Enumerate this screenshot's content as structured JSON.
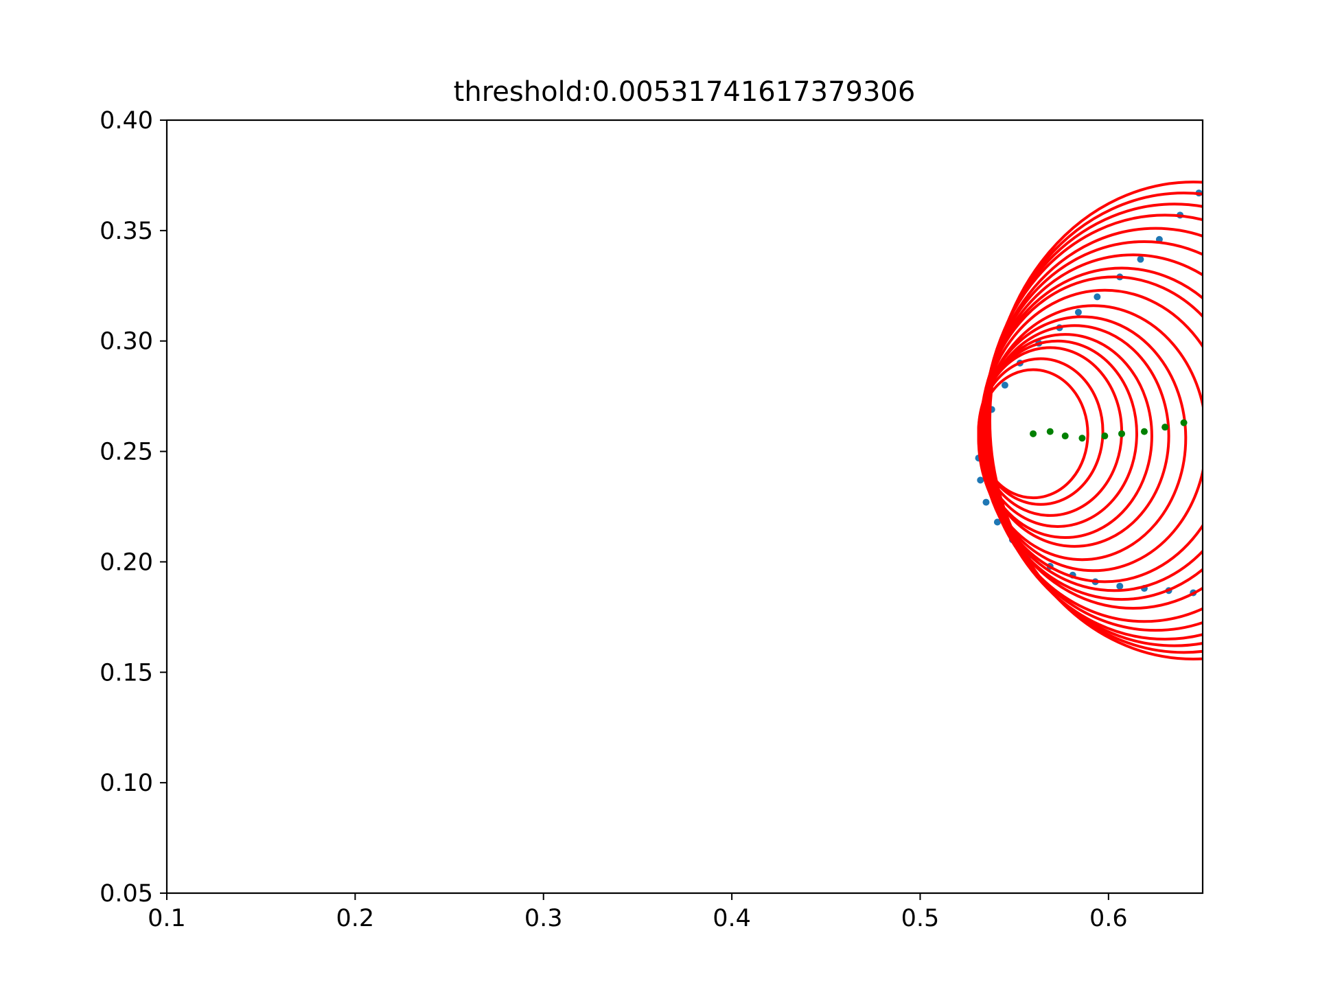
{
  "chart_data": {
    "type": "scatter",
    "title": "threshold:0.00531741617379306",
    "xlabel": "",
    "ylabel": "",
    "xlim": [
      0.1,
      0.65
    ],
    "ylim": [
      0.05,
      0.4
    ],
    "grid": false,
    "x_ticks": [
      0.1,
      0.2,
      0.3,
      0.4,
      0.5,
      0.6
    ],
    "x_tick_labels": [
      "0.1",
      "0.2",
      "0.3",
      "0.4",
      "0.5",
      "0.6"
    ],
    "y_ticks": [
      0.05,
      0.1,
      0.15,
      0.2,
      0.25,
      0.3,
      0.35,
      0.4
    ],
    "y_tick_labels": [
      "0.05",
      "0.10",
      "0.15",
      "0.20",
      "0.25",
      "0.30",
      "0.35",
      "0.40"
    ],
    "boundary_points": {
      "color": "#1f77b4",
      "x": [
        0.648,
        0.638,
        0.627,
        0.617,
        0.606,
        0.594,
        0.584,
        0.574,
        0.563,
        0.553,
        0.545,
        0.538,
        0.533,
        0.531,
        0.532,
        0.535,
        0.541,
        0.549,
        0.558,
        0.569,
        0.581,
        0.593,
        0.606,
        0.619,
        0.632,
        0.645
      ],
      "y": [
        0.367,
        0.357,
        0.346,
        0.337,
        0.329,
        0.32,
        0.313,
        0.306,
        0.299,
        0.29,
        0.28,
        0.269,
        0.258,
        0.247,
        0.237,
        0.227,
        0.218,
        0.21,
        0.203,
        0.198,
        0.194,
        0.191,
        0.189,
        0.188,
        0.187,
        0.186
      ]
    },
    "center_points": {
      "color": "#008000",
      "x": [
        0.56,
        0.569,
        0.577,
        0.586,
        0.598,
        0.607,
        0.619,
        0.63,
        0.64
      ],
      "y": [
        0.258,
        0.259,
        0.257,
        0.256,
        0.257,
        0.258,
        0.259,
        0.261,
        0.263
      ]
    },
    "circles": {
      "color": "#ff0000",
      "cx": [
        0.56,
        0.564,
        0.569,
        0.573,
        0.577,
        0.582,
        0.586,
        0.592,
        0.598,
        0.603,
        0.607,
        0.613,
        0.619,
        0.625,
        0.63,
        0.635,
        0.64,
        0.645
      ],
      "cy": [
        0.258,
        0.259,
        0.259,
        0.258,
        0.257,
        0.257,
        0.256,
        0.256,
        0.257,
        0.258,
        0.258,
        0.259,
        0.259,
        0.26,
        0.261,
        0.262,
        0.263,
        0.264
      ],
      "r": [
        0.029,
        0.033,
        0.038,
        0.042,
        0.046,
        0.05,
        0.055,
        0.06,
        0.066,
        0.071,
        0.075,
        0.08,
        0.086,
        0.091,
        0.096,
        0.1,
        0.104,
        0.108
      ]
    }
  }
}
